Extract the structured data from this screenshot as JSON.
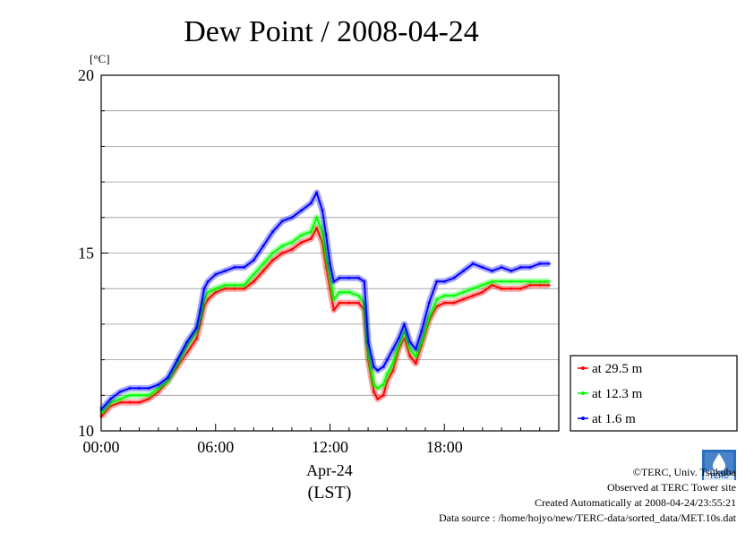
{
  "chart_data": {
    "type": "line",
    "title": "Dew Point / 2008-04-24",
    "ylabel": "[°C]",
    "xlabel_date": "Apr-24",
    "xlabel_zone": "(LST)",
    "ylim": [
      10,
      20
    ],
    "xlim": [
      0,
      24
    ],
    "y_major_ticks": [
      10,
      15,
      20
    ],
    "y_gridlines": [
      11,
      12,
      13,
      14,
      16,
      17,
      18,
      19
    ],
    "x_ticks": [
      {
        "value": 0,
        "label": "00:00"
      },
      {
        "value": 6,
        "label": "06:00"
      },
      {
        "value": 12,
        "label": "12:00"
      },
      {
        "value": 18,
        "label": "18:00"
      }
    ],
    "grid": true,
    "legend_position": "right",
    "series": [
      {
        "name": "at 29.5 m",
        "color": "#ff0000",
        "x": [
          0,
          0.5,
          1,
          1.5,
          2,
          2.5,
          3,
          3.5,
          4,
          4.5,
          5,
          5.2,
          5.4,
          5.6,
          6,
          6.5,
          7,
          7.5,
          8,
          8.5,
          9,
          9.5,
          10,
          10.5,
          11,
          11.3,
          11.6,
          11.8,
          12,
          12.2,
          12.5,
          13,
          13.5,
          13.8,
          14,
          14.3,
          14.5,
          14.8,
          15,
          15.3,
          15.6,
          15.9,
          16.2,
          16.5,
          16.8,
          17.2,
          17.6,
          18,
          18.5,
          19,
          19.5,
          20,
          20.5,
          21,
          21.5,
          22,
          22.5,
          23,
          23.5
        ],
        "values": [
          10.4,
          10.7,
          10.8,
          10.8,
          10.8,
          10.9,
          11.1,
          11.4,
          11.8,
          12.2,
          12.6,
          13.0,
          13.5,
          13.7,
          13.9,
          14.0,
          14.0,
          14.0,
          14.2,
          14.5,
          14.8,
          15.0,
          15.1,
          15.3,
          15.4,
          15.7,
          15.3,
          14.6,
          14.0,
          13.4,
          13.6,
          13.6,
          13.6,
          13.4,
          12.0,
          11.1,
          10.9,
          11.0,
          11.4,
          11.7,
          12.3,
          12.6,
          12.1,
          11.9,
          12.4,
          13.1,
          13.5,
          13.6,
          13.6,
          13.7,
          13.8,
          13.9,
          14.1,
          14.0,
          14.0,
          14.0,
          14.1,
          14.1,
          14.1
        ]
      },
      {
        "name": "at 12.3 m",
        "color": "#00ff00",
        "x": [
          0,
          0.5,
          1,
          1.5,
          2,
          2.5,
          3,
          3.5,
          4,
          4.5,
          5,
          5.2,
          5.4,
          5.6,
          6,
          6.5,
          7,
          7.5,
          8,
          8.5,
          9,
          9.5,
          10,
          10.5,
          11,
          11.3,
          11.6,
          11.8,
          12,
          12.2,
          12.5,
          13,
          13.5,
          13.8,
          14,
          14.3,
          14.5,
          14.8,
          15,
          15.3,
          15.6,
          15.9,
          16.2,
          16.5,
          16.8,
          17.2,
          17.6,
          18,
          18.5,
          19,
          19.5,
          20,
          20.5,
          21,
          21.5,
          22,
          22.5,
          23,
          23.5
        ],
        "values": [
          10.5,
          10.8,
          10.9,
          11.0,
          11.0,
          11.0,
          11.2,
          11.4,
          11.9,
          12.4,
          12.8,
          13.2,
          13.7,
          13.9,
          14.0,
          14.1,
          14.1,
          14.1,
          14.4,
          14.7,
          15.0,
          15.2,
          15.3,
          15.5,
          15.6,
          16.0,
          15.6,
          14.9,
          14.4,
          13.7,
          13.9,
          13.9,
          13.8,
          13.6,
          12.2,
          11.3,
          11.2,
          11.3,
          11.6,
          11.9,
          12.4,
          12.8,
          12.3,
          12.1,
          12.5,
          13.2,
          13.7,
          13.8,
          13.8,
          13.9,
          14.0,
          14.1,
          14.2,
          14.2,
          14.2,
          14.2,
          14.2,
          14.2,
          14.2
        ]
      },
      {
        "name": "at 1.6 m",
        "color": "#0000ff",
        "x": [
          0,
          0.5,
          1,
          1.5,
          2,
          2.5,
          3,
          3.5,
          4,
          4.5,
          5,
          5.2,
          5.4,
          5.6,
          6,
          6.5,
          7,
          7.5,
          8,
          8.5,
          9,
          9.5,
          10,
          10.5,
          11,
          11.3,
          11.6,
          11.8,
          12,
          12.2,
          12.5,
          13,
          13.5,
          13.8,
          14,
          14.3,
          14.5,
          14.8,
          15,
          15.3,
          15.6,
          15.9,
          16.2,
          16.5,
          16.8,
          17.2,
          17.6,
          18,
          18.5,
          19,
          19.5,
          20,
          20.5,
          21,
          21.5,
          22,
          22.5,
          23,
          23.5
        ],
        "values": [
          10.6,
          10.9,
          11.1,
          11.2,
          11.2,
          11.2,
          11.3,
          11.5,
          12.0,
          12.5,
          12.9,
          13.4,
          14.0,
          14.2,
          14.4,
          14.5,
          14.6,
          14.6,
          14.8,
          15.2,
          15.6,
          15.9,
          16.0,
          16.2,
          16.4,
          16.7,
          16.2,
          15.5,
          14.7,
          14.2,
          14.3,
          14.3,
          14.3,
          14.2,
          12.5,
          11.8,
          11.7,
          11.8,
          12.0,
          12.3,
          12.6,
          13.0,
          12.5,
          12.3,
          12.8,
          13.6,
          14.2,
          14.2,
          14.3,
          14.5,
          14.7,
          14.6,
          14.5,
          14.6,
          14.5,
          14.6,
          14.6,
          14.7,
          14.7
        ]
      }
    ]
  },
  "credits": {
    "org": "©TERC, Univ. Tsukuba",
    "site": "Observed at TERC Tower site",
    "created": "Created Automatically at 2008-04-24/23:55:21",
    "source": "Data source : /home/hojyo/new/TERC-data/sorted_data/MET.10s.dat",
    "logo_text": "TERC"
  }
}
